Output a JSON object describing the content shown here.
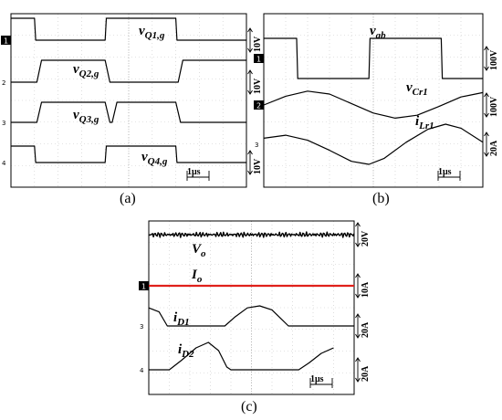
{
  "panels": [
    {
      "caption": "(a)",
      "time_scale": "1μs",
      "type": "line",
      "title": "",
      "x_unit": "μs",
      "x_range": [
        0,
        10
      ],
      "traces": [
        {
          "name": "v_Q1,g",
          "label_main": "v",
          "label_sub": "Q1,g",
          "channel": "1",
          "scale_label": "10V",
          "channel_color": "#000000",
          "points": [
            [
              0,
              1
            ],
            [
              1.0,
              1
            ],
            [
              1.05,
              0
            ],
            [
              4.0,
              0
            ],
            [
              4.05,
              1
            ],
            [
              7.0,
              1
            ],
            [
              7.05,
              0
            ],
            [
              10,
              0
            ]
          ]
        },
        {
          "name": "v_Q2,g",
          "label_main": "v",
          "label_sub": "Q2,g",
          "channel": "2",
          "scale_label": "10V",
          "channel_color": "#000000",
          "points": [
            [
              0,
              0
            ],
            [
              1.1,
              0
            ],
            [
              1.3,
              1
            ],
            [
              4.0,
              1
            ],
            [
              4.2,
              0
            ],
            [
              7.1,
              0
            ],
            [
              7.3,
              1
            ],
            [
              10,
              1
            ]
          ]
        },
        {
          "name": "v_Q3,g",
          "label_main": "v",
          "label_sub": "Q3,g",
          "channel": "3",
          "scale_label": "",
          "channel_color": "#000000",
          "points": [
            [
              0,
              0
            ],
            [
              1.1,
              0
            ],
            [
              1.3,
              1
            ],
            [
              4.0,
              1
            ],
            [
              4.2,
              0
            ],
            [
              4.3,
              0
            ],
            [
              4.5,
              1
            ],
            [
              7.0,
              1
            ],
            [
              7.2,
              0
            ],
            [
              10,
              0
            ]
          ]
        },
        {
          "name": "v_Q4,g",
          "label_main": "v",
          "label_sub": "Q4,g",
          "channel": "4",
          "scale_label": "10V",
          "channel_color": "#000000",
          "points": [
            [
              0,
              1
            ],
            [
              1.0,
              1
            ],
            [
              1.05,
              0
            ],
            [
              4.0,
              0
            ],
            [
              4.05,
              1
            ],
            [
              7.0,
              1
            ],
            [
              7.05,
              0
            ],
            [
              10,
              0
            ]
          ]
        }
      ]
    },
    {
      "caption": "(b)",
      "time_scale": "1μs",
      "type": "line",
      "title": "",
      "x_unit": "μs",
      "x_range": [
        0,
        10
      ],
      "traces": [
        {
          "name": "v_ab",
          "label_main": "v",
          "label_sub": "ab",
          "channel": "1",
          "scale_label": "100V",
          "channel_color": "#000000",
          "points": [
            [
              0,
              1
            ],
            [
              1.5,
              1
            ],
            [
              1.55,
              -1
            ],
            [
              4.8,
              -1
            ],
            [
              4.85,
              1
            ],
            [
              8.1,
              1
            ],
            [
              8.15,
              -1
            ],
            [
              10,
              -1
            ]
          ]
        },
        {
          "name": "v_Cr1",
          "label_main": "v",
          "label_sub": "Cr1",
          "channel": "2",
          "scale_label": "100V",
          "channel_color": "#000000",
          "points": [
            [
              0,
              0
            ],
            [
              1,
              0.6
            ],
            [
              2,
              0.95
            ],
            [
              3,
              0.75
            ],
            [
              4,
              0.1
            ],
            [
              5,
              -0.55
            ],
            [
              6,
              -0.9
            ],
            [
              7,
              -0.7
            ],
            [
              8,
              -0.1
            ],
            [
              9,
              0.55
            ],
            [
              10,
              0.85
            ]
          ]
        },
        {
          "name": "i_Lr1",
          "label_main": "i",
          "label_sub": "Lr1",
          "channel": "3",
          "scale_label": "20A",
          "channel_color": "#000000",
          "points": [
            [
              0,
              0.3
            ],
            [
              1,
              0.45
            ],
            [
              2,
              0.2
            ],
            [
              3,
              -0.3
            ],
            [
              4,
              -0.85
            ],
            [
              4.8,
              -1
            ],
            [
              5.5,
              -0.7
            ],
            [
              6.5,
              0.1
            ],
            [
              7.5,
              0.75
            ],
            [
              8.3,
              1
            ],
            [
              9,
              0.8
            ],
            [
              10,
              0.1
            ]
          ]
        }
      ]
    },
    {
      "caption": "(c)",
      "time_scale": "1μs",
      "type": "line",
      "title": "",
      "x_unit": "μs",
      "x_range": [
        0,
        10
      ],
      "traces": [
        {
          "name": "V_o",
          "label_main": "V",
          "label_sub": "o",
          "channel": "",
          "scale_label": "20V",
          "channel_color": "#000000",
          "points": [
            [
              0,
              0
            ],
            [
              10,
              0
            ]
          ]
        },
        {
          "name": "I_o",
          "label_main": "I",
          "label_sub": "o",
          "channel": "1",
          "scale_label": "10A",
          "channel_color": "#e0201b",
          "points": [
            [
              0,
              0
            ],
            [
              10,
              0
            ]
          ]
        },
        {
          "name": "i_D1",
          "label_main": "i",
          "label_sub": "D1",
          "channel": "3",
          "scale_label": "20A",
          "channel_color": "#000000",
          "points": [
            [
              0,
              0.9
            ],
            [
              0.5,
              0.7
            ],
            [
              0.9,
              0
            ],
            [
              3.7,
              0
            ],
            [
              4.2,
              0.45
            ],
            [
              4.8,
              0.9
            ],
            [
              5.4,
              1
            ],
            [
              6.0,
              0.8
            ],
            [
              6.5,
              0.3
            ],
            [
              6.8,
              0
            ],
            [
              10,
              0
            ]
          ]
        },
        {
          "name": "i_D2",
          "label_main": "i",
          "label_sub": "D2",
          "channel": "4",
          "scale_label": "20A",
          "channel_color": "#000000",
          "points": [
            [
              0,
              0
            ],
            [
              1.0,
              0
            ],
            [
              1.6,
              0.35
            ],
            [
              2.3,
              0.8
            ],
            [
              2.9,
              1
            ],
            [
              3.4,
              0.7
            ],
            [
              3.8,
              0.1
            ],
            [
              4.0,
              0
            ],
            [
              7.3,
              0
            ],
            [
              7.8,
              0.25
            ],
            [
              8.4,
              0.6
            ],
            [
              9,
              0.8
            ]
          ]
        }
      ]
    }
  ],
  "colors": {
    "trace": "#000000",
    "grid": "#c8c8c8",
    "frame": "#000000",
    "io_trace": "#e0201b"
  }
}
